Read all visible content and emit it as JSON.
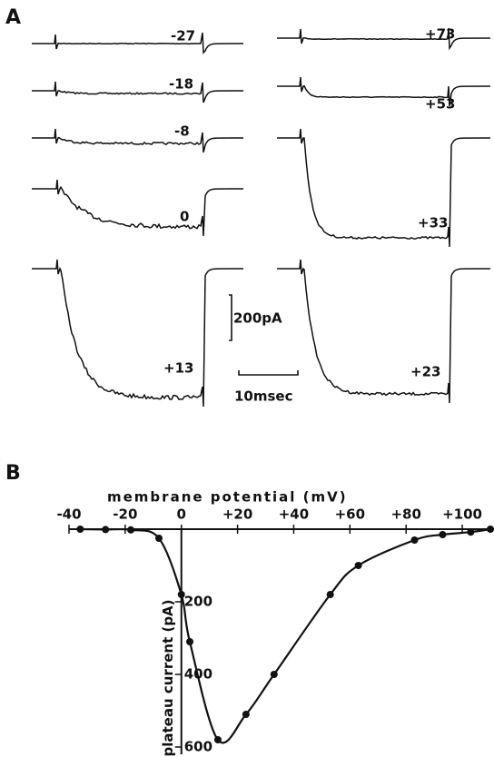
{
  "panel_a": {
    "label": "A",
    "traces": [
      "-27",
      "-18",
      "-8",
      "0",
      "+13",
      "+73",
      "+53",
      "+33",
      "+23"
    ],
    "scale_current": "200pA",
    "scale_time": "10msec"
  },
  "chart_data": {
    "type": "line",
    "panel_label": "B",
    "x_label": "membrane potential (mV)",
    "y_label": "plateau current (pA)",
    "color": "#111111",
    "x": [
      -36,
      -27,
      -18,
      -8,
      0,
      3,
      13,
      23,
      33,
      53,
      63,
      83,
      93,
      103,
      110
    ],
    "values": [
      0,
      1,
      2,
      25,
      180,
      310,
      580,
      510,
      400,
      180,
      100,
      30,
      15,
      8,
      0
    ],
    "xlim": [
      -40,
      110
    ],
    "xticks": [
      -40,
      -20,
      0,
      {
        "value": 20,
        "label": "+20"
      },
      {
        "value": 40,
        "label": "+40"
      },
      {
        "value": 60,
        "label": "+60"
      },
      {
        "value": 80,
        "label": "+80"
      },
      {
        "value": 100,
        "label": "+100"
      }
    ],
    "ylim": [
      0,
      620
    ],
    "yticks": [
      200,
      400,
      600
    ]
  }
}
